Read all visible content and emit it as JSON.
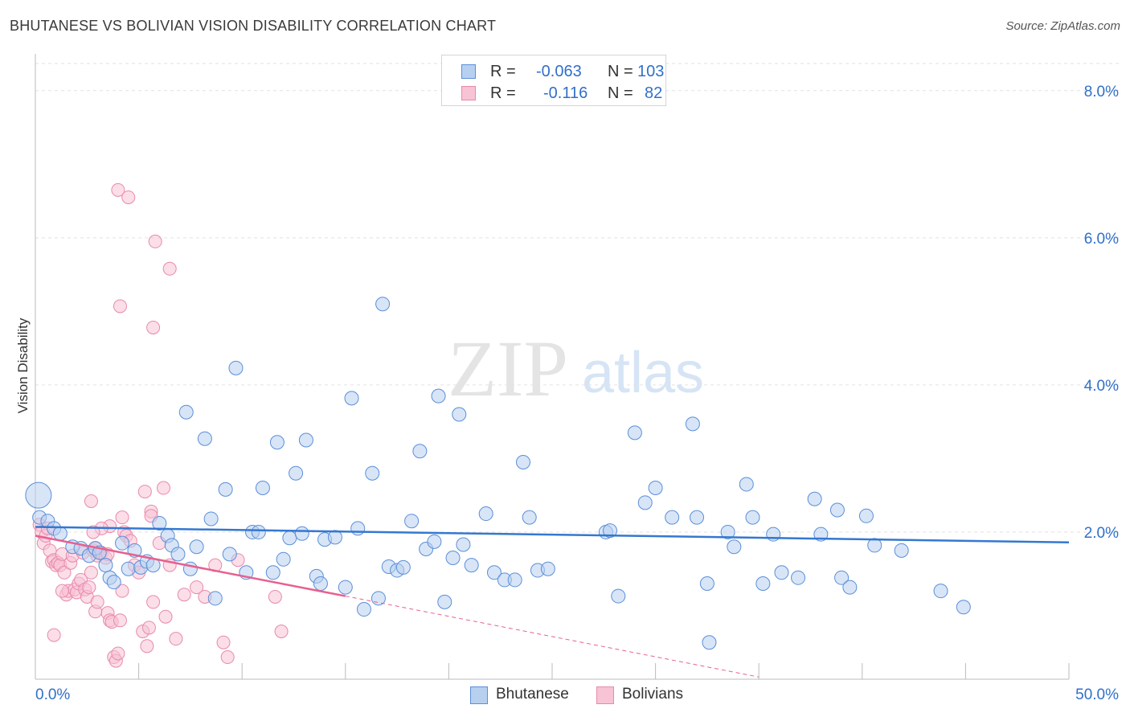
{
  "title": "BHUTANESE VS BOLIVIAN VISION DISABILITY CORRELATION CHART",
  "source": "Source: ZipAtlas.com",
  "watermark": {
    "zip": "ZIP",
    "atlas": "atlas"
  },
  "colors": {
    "blue": "#3478d0",
    "blue_fill": "#b8d0f0",
    "blue_stroke": "#5a8fd8",
    "pink": "#e8608f",
    "pink_fill": "#f7c3d5",
    "pink_stroke": "#e88aab",
    "tick_label": "#3070c8",
    "grid": "#e2e2e2"
  },
  "legend": {
    "rows": [
      {
        "r_label": "R =",
        "r_value": "-0.063",
        "n_label": "N =",
        "n_value": "103"
      },
      {
        "r_label": "R =",
        "r_value": "-0.116",
        "n_label": "N =",
        "n_value": "82"
      }
    ]
  },
  "chart_data": {
    "type": "scatter",
    "title": "BHUTANESE VS BOLIVIAN VISION DISABILITY CORRELATION CHART",
    "xlabel": "",
    "ylabel": "Vision Disability",
    "xlim": [
      0,
      50
    ],
    "ylim": [
      0,
      8.5
    ],
    "x_ticks": [
      {
        "value": 0,
        "label": "0.0%"
      },
      {
        "value": 50,
        "label": "50.0%"
      }
    ],
    "y_ticks": [
      {
        "value": 2,
        "label": "2.0%"
      },
      {
        "value": 4,
        "label": "4.0%"
      },
      {
        "value": 6,
        "label": "6.0%"
      },
      {
        "value": 8,
        "label": "8.0%"
      }
    ],
    "grid": true,
    "legend_position": "top-center",
    "series": [
      {
        "name": "Bhutanese",
        "R": -0.063,
        "N": 103,
        "trend": {
          "x": [
            0,
            50
          ],
          "y": [
            2.07,
            1.86
          ],
          "style": "solid"
        },
        "points": [
          [
            0.2,
            2.2
          ],
          [
            0.6,
            2.15
          ],
          [
            0.9,
            2.05
          ],
          [
            1.2,
            1.98
          ],
          [
            1.8,
            1.8
          ],
          [
            2.2,
            1.78
          ],
          [
            2.6,
            1.68
          ],
          [
            2.9,
            1.78
          ],
          [
            3.1,
            1.72
          ],
          [
            3.4,
            1.55
          ],
          [
            3.6,
            1.38
          ],
          [
            3.8,
            1.32
          ],
          [
            4.2,
            1.85
          ],
          [
            4.5,
            1.5
          ],
          [
            4.8,
            1.75
          ],
          [
            5.1,
            1.52
          ],
          [
            5.4,
            1.6
          ],
          [
            5.7,
            1.55
          ],
          [
            6.0,
            2.12
          ],
          [
            6.4,
            1.95
          ],
          [
            6.6,
            1.82
          ],
          [
            6.9,
            1.7
          ],
          [
            7.3,
            3.63
          ],
          [
            7.5,
            1.5
          ],
          [
            7.8,
            1.8
          ],
          [
            8.2,
            3.27
          ],
          [
            8.5,
            2.18
          ],
          [
            8.7,
            1.1
          ],
          [
            9.2,
            2.58
          ],
          [
            9.4,
            1.7
          ],
          [
            9.7,
            4.23
          ],
          [
            10.2,
            1.45
          ],
          [
            10.5,
            2.0
          ],
          [
            10.8,
            2.0
          ],
          [
            11.0,
            2.6
          ],
          [
            11.5,
            1.45
          ],
          [
            11.7,
            3.22
          ],
          [
            12.0,
            1.63
          ],
          [
            12.3,
            1.92
          ],
          [
            12.6,
            2.8
          ],
          [
            12.9,
            1.98
          ],
          [
            13.1,
            3.25
          ],
          [
            13.6,
            1.4
          ],
          [
            13.8,
            1.3
          ],
          [
            14.0,
            1.9
          ],
          [
            14.5,
            1.93
          ],
          [
            15.0,
            1.25
          ],
          [
            15.3,
            3.82
          ],
          [
            15.6,
            2.05
          ],
          [
            15.9,
            0.95
          ],
          [
            16.3,
            2.8
          ],
          [
            16.6,
            1.1
          ],
          [
            16.8,
            5.1
          ],
          [
            17.1,
            1.53
          ],
          [
            17.5,
            1.48
          ],
          [
            17.8,
            1.52
          ],
          [
            18.2,
            2.15
          ],
          [
            18.6,
            3.1
          ],
          [
            18.9,
            1.77
          ],
          [
            19.3,
            1.87
          ],
          [
            19.5,
            3.85
          ],
          [
            19.8,
            1.05
          ],
          [
            20.2,
            1.65
          ],
          [
            20.5,
            3.6
          ],
          [
            20.7,
            1.83
          ],
          [
            21.1,
            1.55
          ],
          [
            21.8,
            2.25
          ],
          [
            22.2,
            1.45
          ],
          [
            22.7,
            1.35
          ],
          [
            23.2,
            1.35
          ],
          [
            23.6,
            2.95
          ],
          [
            23.9,
            2.2
          ],
          [
            24.3,
            1.48
          ],
          [
            24.8,
            1.5
          ],
          [
            27.6,
            2.0
          ],
          [
            27.8,
            2.02
          ],
          [
            28.2,
            1.13
          ],
          [
            29.0,
            3.35
          ],
          [
            29.5,
            2.4
          ],
          [
            30.0,
            2.6
          ],
          [
            30.8,
            2.2
          ],
          [
            31.8,
            3.47
          ],
          [
            32.0,
            2.2
          ],
          [
            32.5,
            1.3
          ],
          [
            32.6,
            0.5
          ],
          [
            33.5,
            2.0
          ],
          [
            33.8,
            1.8
          ],
          [
            34.4,
            2.65
          ],
          [
            34.7,
            2.2
          ],
          [
            35.2,
            1.3
          ],
          [
            35.7,
            1.97
          ],
          [
            36.1,
            1.45
          ],
          [
            36.9,
            1.38
          ],
          [
            37.7,
            2.45
          ],
          [
            38.0,
            1.97
          ],
          [
            38.8,
            2.3
          ],
          [
            39.0,
            1.38
          ],
          [
            39.4,
            1.25
          ],
          [
            40.2,
            2.22
          ],
          [
            40.6,
            1.82
          ],
          [
            41.9,
            1.75
          ],
          [
            43.8,
            1.2
          ],
          [
            44.9,
            0.98
          ]
        ]
      },
      {
        "name": "Bolivians",
        "R": -0.116,
        "N": 82,
        "trend": {
          "x": [
            0,
            15
          ],
          "y": [
            1.95,
            1.13
          ],
          "style": "solid",
          "dash_to": {
            "x": [
              15,
              35
            ],
            "y": [
              1.13,
              0.03
            ]
          }
        },
        "points": [
          [
            0.2,
            2.1
          ],
          [
            0.3,
            2.0
          ],
          [
            0.4,
            1.85
          ],
          [
            0.5,
            1.95
          ],
          [
            0.6,
            2.05
          ],
          [
            0.7,
            1.75
          ],
          [
            0.8,
            1.6
          ],
          [
            0.9,
            1.62
          ],
          [
            1.0,
            1.55
          ],
          [
            1.1,
            1.58
          ],
          [
            1.2,
            1.55
          ],
          [
            1.3,
            1.7
          ],
          [
            1.4,
            1.45
          ],
          [
            1.5,
            1.15
          ],
          [
            1.6,
            1.2
          ],
          [
            1.7,
            1.58
          ],
          [
            1.8,
            1.68
          ],
          [
            1.9,
            1.22
          ],
          [
            2.0,
            1.18
          ],
          [
            2.1,
            1.3
          ],
          [
            2.2,
            1.35
          ],
          [
            2.3,
            1.72
          ],
          [
            2.4,
            1.22
          ],
          [
            2.5,
            1.12
          ],
          [
            2.6,
            1.25
          ],
          [
            2.7,
            1.45
          ],
          [
            2.8,
            1.75
          ],
          [
            2.9,
            1.78
          ],
          [
            3.0,
            1.68
          ],
          [
            3.1,
            1.72
          ],
          [
            3.2,
            1.72
          ],
          [
            3.4,
            1.65
          ],
          [
            3.5,
            0.9
          ],
          [
            3.6,
            0.8
          ],
          [
            3.7,
            0.78
          ],
          [
            3.8,
            0.3
          ],
          [
            3.9,
            0.25
          ],
          [
            4.0,
            0.35
          ],
          [
            4.1,
            0.8
          ],
          [
            4.2,
            1.2
          ],
          [
            4.3,
            2.0
          ],
          [
            4.4,
            1.95
          ],
          [
            4.6,
            1.88
          ],
          [
            4.8,
            1.55
          ],
          [
            5.0,
            1.45
          ],
          [
            5.2,
            0.65
          ],
          [
            5.4,
            0.45
          ],
          [
            5.5,
            0.7
          ],
          [
            5.7,
            1.05
          ],
          [
            6.0,
            1.85
          ],
          [
            6.3,
            0.85
          ],
          [
            6.5,
            1.55
          ],
          [
            6.8,
            0.55
          ],
          [
            7.2,
            1.15
          ],
          [
            7.8,
            1.25
          ],
          [
            8.2,
            1.12
          ],
          [
            8.7,
            1.55
          ],
          [
            9.1,
            0.5
          ],
          [
            9.3,
            0.3
          ],
          [
            9.8,
            1.62
          ],
          [
            11.6,
            1.12
          ],
          [
            11.9,
            0.65
          ],
          [
            2.7,
            2.42
          ],
          [
            3.6,
            2.08
          ],
          [
            3.2,
            2.05
          ],
          [
            2.8,
            2.0
          ],
          [
            4.0,
            6.65
          ],
          [
            4.5,
            6.55
          ],
          [
            5.3,
            2.55
          ],
          [
            5.6,
            2.28
          ],
          [
            6.2,
            2.6
          ],
          [
            4.2,
            2.2
          ],
          [
            5.8,
            5.95
          ],
          [
            6.5,
            5.58
          ],
          [
            4.1,
            5.07
          ],
          [
            5.7,
            4.78
          ],
          [
            3.5,
            1.7
          ],
          [
            1.3,
            1.2
          ],
          [
            0.9,
            0.6
          ],
          [
            5.6,
            2.22
          ],
          [
            2.9,
            0.92
          ],
          [
            3.0,
            1.05
          ]
        ]
      }
    ]
  },
  "bottom_legend": [
    "Bhutanese",
    "Bolivians"
  ]
}
